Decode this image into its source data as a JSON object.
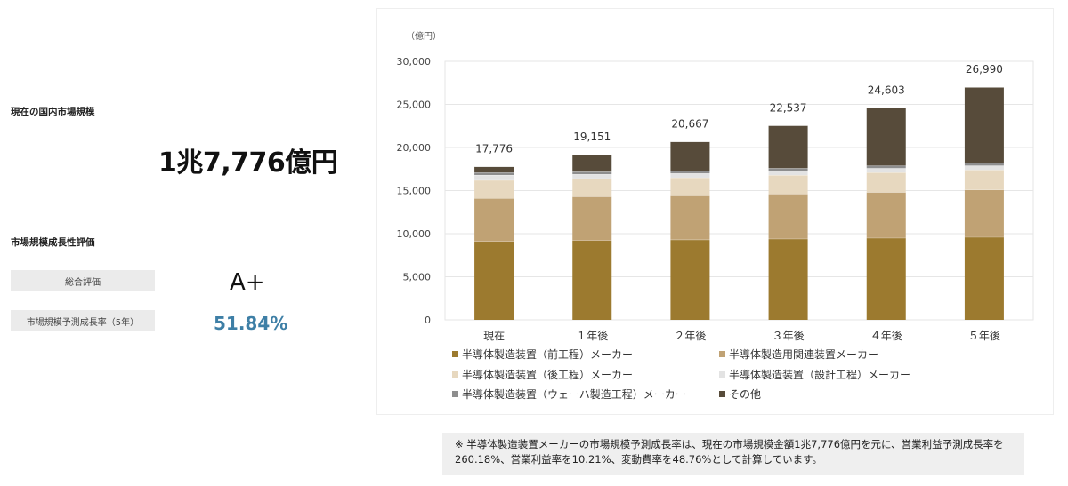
{
  "summary": {
    "market_size_heading": "現在の国内市場規模",
    "market_size_value": "1兆7,776億円",
    "growth_heading": "市場規模成長性評価",
    "overall_label": "総合評価",
    "overall_grade": "A+",
    "rate_label": "市場規模予測成長率（5年）",
    "rate_value": "51.84%"
  },
  "chart_data": {
    "type": "bar",
    "stacked": true,
    "unit_label": "（億円）",
    "categories": [
      "現在",
      "１年後",
      "２年後",
      "３年後",
      "４年後",
      "５年後"
    ],
    "totals": [
      17776,
      19151,
      20667,
      22537,
      24603,
      26990
    ],
    "total_labels": [
      "17,776",
      "19,151",
      "20,667",
      "22,537",
      "24,603",
      "26,990"
    ],
    "ylim": [
      0,
      30000
    ],
    "yticks": [
      0,
      5000,
      10000,
      15000,
      20000,
      25000,
      30000
    ],
    "ytick_labels": [
      "0",
      "5,000",
      "10,000",
      "15,000",
      "20,000",
      "25,000",
      "30,000"
    ],
    "grid": true,
    "legend_position": "bottom",
    "series": [
      {
        "name": "半導体製造装置（前工程）メーカー",
        "color": "#9c7a2f",
        "values": [
          9100,
          9200,
          9300,
          9400,
          9500,
          9600
        ]
      },
      {
        "name": "半導体製造用関連装置メーカー",
        "color": "#c0a274",
        "values": [
          5000,
          5100,
          5100,
          5200,
          5300,
          5500
        ]
      },
      {
        "name": "半導体製造装置（後工程）メーカー",
        "color": "#e7d8bf",
        "values": [
          2100,
          2100,
          2100,
          2200,
          2300,
          2300
        ]
      },
      {
        "name": "半導体製造装置（設計工程）メーカー",
        "color": "#e3e3e3",
        "values": [
          600,
          500,
          500,
          500,
          500,
          500
        ]
      },
      {
        "name": "半導体製造装置（ウェーハ製造工程）メーカー",
        "color": "#8e8e8e",
        "values": [
          300,
          300,
          300,
          300,
          300,
          300
        ]
      },
      {
        "name": "その他",
        "color": "#574b3a",
        "values": [
          676,
          1951,
          3367,
          4937,
          6703,
          8790
        ]
      }
    ]
  },
  "footnote": "※ 半導体製造装置メーカーの市場規模予測成長率は、現在の市場規模金額1兆7,776億円を元に、営業利益予測成長率を260.18%、営業利益率を10.21%、変動費率を48.76%として計算しています。"
}
